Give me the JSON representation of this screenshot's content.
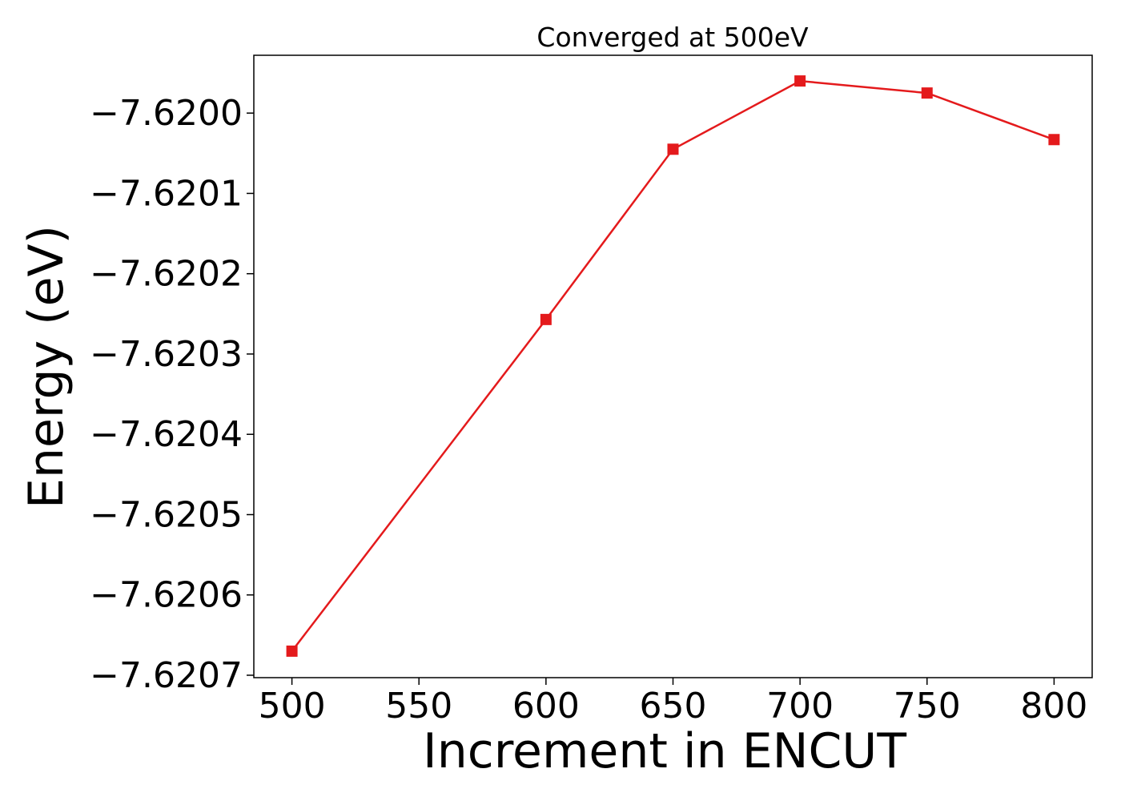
{
  "chart_data": {
    "type": "line",
    "title": "Converged at 500eV",
    "xlabel": "Increment in ENCUT",
    "ylabel": "Energy (eV)",
    "x": [
      500,
      600,
      650,
      700,
      750,
      800
    ],
    "series": [
      {
        "values": [
          -7.62067,
          -7.620257,
          -7.620045,
          -7.61996,
          -7.619975,
          -7.620033
        ],
        "color": "#e41a1c",
        "marker": "square"
      }
    ],
    "xticks": [
      500,
      550,
      600,
      650,
      700,
      750,
      800
    ],
    "xtick_labels": [
      "500",
      "550",
      "600",
      "650",
      "700",
      "750",
      "800"
    ],
    "yticks": [
      -7.6207,
      -7.6206,
      -7.6205,
      -7.6204,
      -7.6203,
      -7.6202,
      -7.6201,
      -7.62
    ],
    "ytick_labels": [
      "−7.6207",
      "−7.6206",
      "−7.6205",
      "−7.6204",
      "−7.6203",
      "−7.6202",
      "−7.6201",
      "−7.6200"
    ],
    "xlim": [
      485,
      815
    ],
    "ylim": [
      -7.620703,
      -7.619928
    ],
    "grid": false,
    "legend": false
  }
}
